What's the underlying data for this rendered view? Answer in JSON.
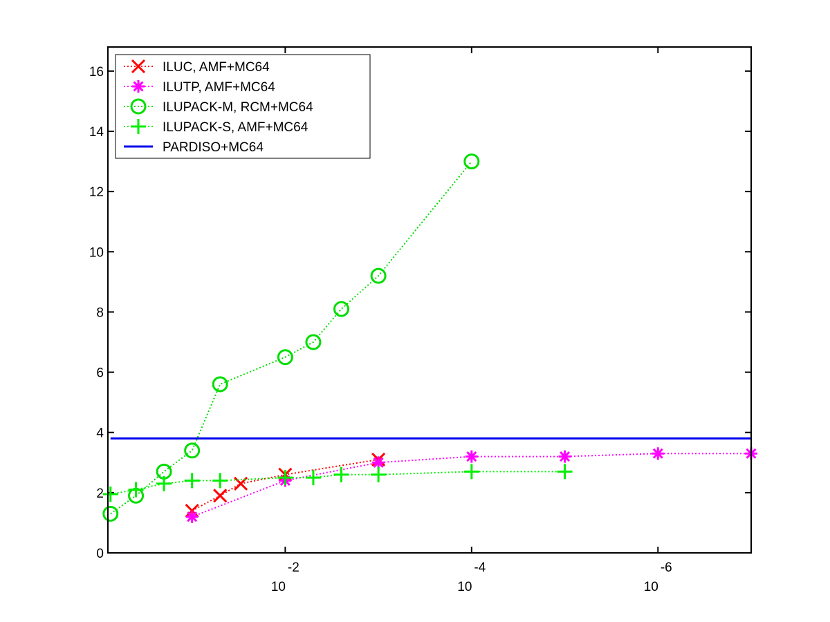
{
  "chart_data": {
    "type": "line",
    "title": "",
    "xlabel": "",
    "ylabel": "",
    "x_scale": "log",
    "x_reversed": true,
    "xlim": [
      0.8,
      1e-07
    ],
    "ylim": [
      0,
      16.8
    ],
    "yticks": [
      0,
      2,
      4,
      6,
      8,
      10,
      12,
      14,
      16
    ],
    "xticks": [
      {
        "value": 0.01,
        "base": "10",
        "exp": "-2"
      },
      {
        "value": 0.0001,
        "base": "10",
        "exp": "-4"
      },
      {
        "value": 1e-06,
        "base": "10",
        "exp": "-6"
      }
    ],
    "grid": false,
    "legend_position": "top-left",
    "series": [
      {
        "name": "ILUC, AMF+MC64",
        "color": "#ff0000",
        "marker": "x",
        "line": "dotted",
        "points": [
          [
            0.1,
            1.4
          ],
          [
            0.05,
            1.9
          ],
          [
            0.03,
            2.3
          ],
          [
            0.01,
            2.6
          ],
          [
            0.001,
            3.1
          ]
        ]
      },
      {
        "name": "ILUTP, AMF+MC64",
        "color": "#ff00ff",
        "marker": "star",
        "line": "dotted",
        "points": [
          [
            0.1,
            1.2
          ],
          [
            0.01,
            2.4
          ],
          [
            0.001,
            3.0
          ],
          [
            0.0001,
            3.2
          ],
          [
            1e-05,
            3.2
          ],
          [
            1e-06,
            3.3
          ],
          [
            1e-07,
            3.3
          ]
        ]
      },
      {
        "name": "ILUPACK-M, RCM+MC64",
        "color": "#00dd00",
        "marker": "circle",
        "line": "dotted",
        "points": [
          [
            0.75,
            1.3
          ],
          [
            0.4,
            1.9
          ],
          [
            0.2,
            2.7
          ],
          [
            0.1,
            3.4
          ],
          [
            0.05,
            5.6
          ],
          [
            0.01,
            6.5
          ],
          [
            0.005,
            7.0
          ],
          [
            0.0025,
            8.1
          ],
          [
            0.001,
            9.2
          ],
          [
            0.0001,
            13.0
          ]
        ]
      },
      {
        "name": "ILUPACK-S, AMF+MC64",
        "color": "#00ee00",
        "marker": "plus",
        "line": "dotted",
        "points": [
          [
            0.75,
            1.95
          ],
          [
            0.4,
            2.1
          ],
          [
            0.2,
            2.3
          ],
          [
            0.1,
            2.4
          ],
          [
            0.05,
            2.4
          ],
          [
            0.01,
            2.5
          ],
          [
            0.005,
            2.5
          ],
          [
            0.0025,
            2.6
          ],
          [
            0.001,
            2.6
          ],
          [
            0.0001,
            2.7
          ],
          [
            1e-05,
            2.7
          ]
        ]
      },
      {
        "name": "PARDISO+MC64",
        "color": "#0000ee",
        "marker": "none",
        "line": "solid",
        "points": [
          [
            0.75,
            3.8
          ],
          [
            1e-07,
            3.8
          ]
        ]
      }
    ]
  }
}
